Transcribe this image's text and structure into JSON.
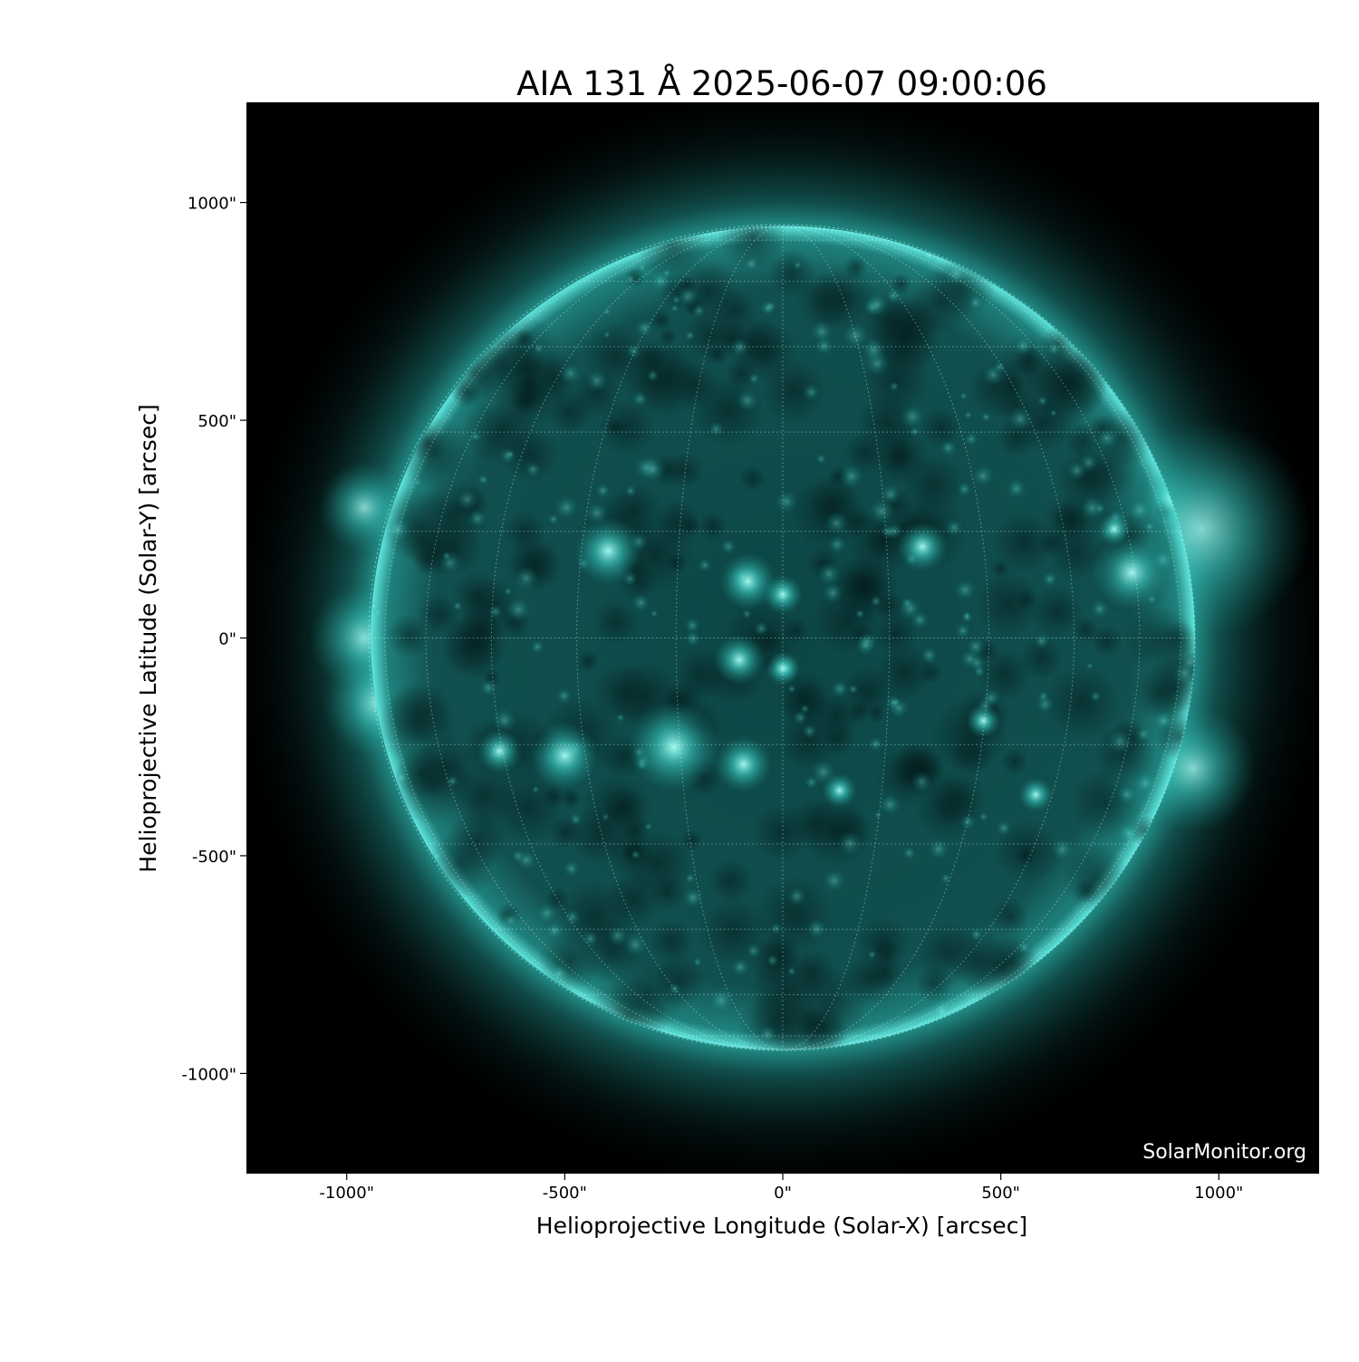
{
  "title": "AIA 131 Å 2025-06-07 09:00:06",
  "xlabel": "Helioprojective Longitude (Solar-X) [arcsec]",
  "ylabel": "Helioprojective Latitude (Solar-Y) [arcsec]",
  "x_ticks": [
    "-1000\"",
    "-500\"",
    "0\"",
    "500\"",
    "1000\""
  ],
  "y_ticks": [
    "1000\"",
    "500\"",
    "0\"",
    "-500\"",
    "-1000\""
  ],
  "x_tick_values": [
    -1000,
    -500,
    0,
    500,
    1000
  ],
  "y_tick_values": [
    1000,
    500,
    0,
    -500,
    -1000
  ],
  "x_range_arcsec": [
    -1230,
    1230
  ],
  "y_range_arcsec": [
    -1230,
    1230
  ],
  "solar_radius_arcsec": 945,
  "grid_spacing_deg": 15,
  "watermark": "SolarMonitor.org",
  "colors": {
    "disk": "#0e4a4a",
    "limb": "#4fe0d8",
    "background": "#000000"
  }
}
